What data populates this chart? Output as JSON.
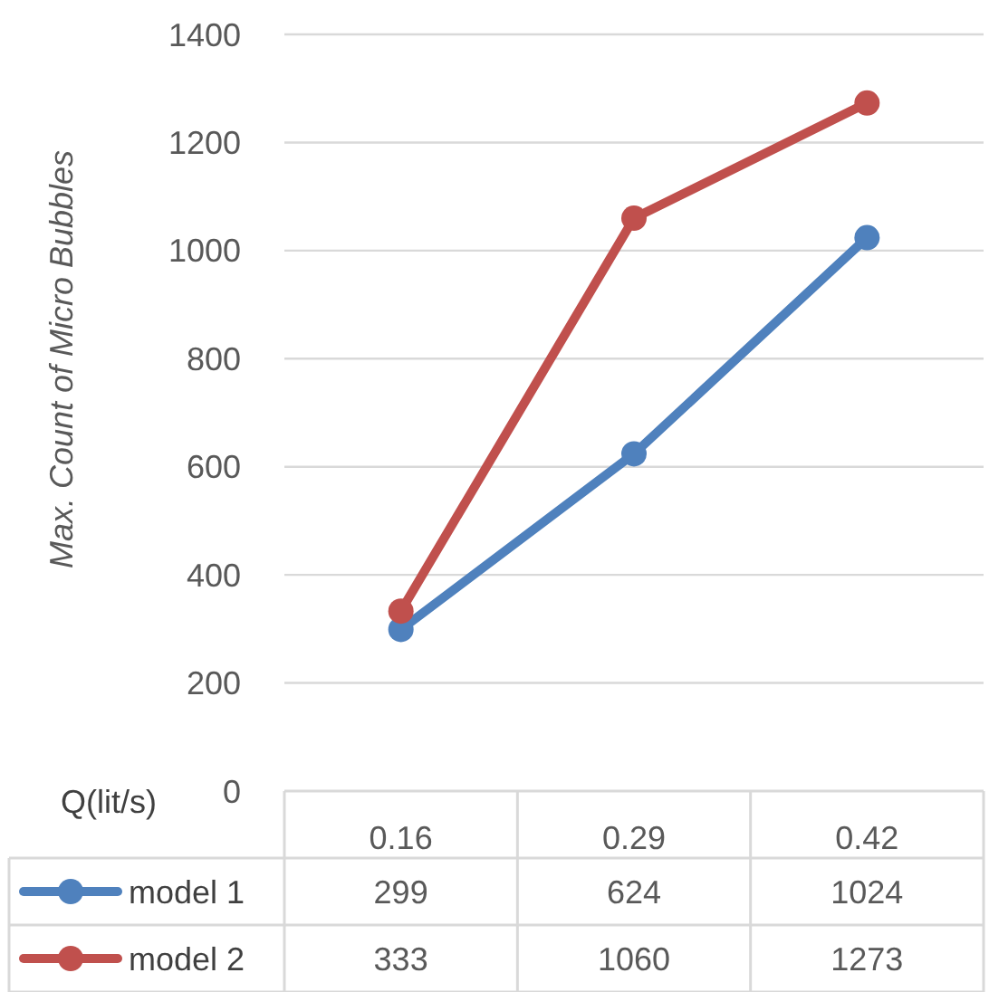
{
  "chart_data": {
    "type": "line",
    "xlabel": "Q(lit/s)",
    "ylabel": "Max. Count of Micro Bubbles",
    "categories": [
      "0.16",
      "0.29",
      "0.42"
    ],
    "series": [
      {
        "name": "model 1",
        "color": "#4f81bd",
        "values": [
          299,
          624,
          1024
        ]
      },
      {
        "name": "model 2",
        "color": "#c0504d",
        "values": [
          333,
          1060,
          1273
        ]
      }
    ],
    "ylim": [
      0,
      1400
    ],
    "yticks": [
      0,
      200,
      400,
      600,
      800,
      1000,
      1200,
      1400
    ],
    "grid": "y",
    "marker": "circle",
    "data_labels": true,
    "legend": "bottom"
  }
}
